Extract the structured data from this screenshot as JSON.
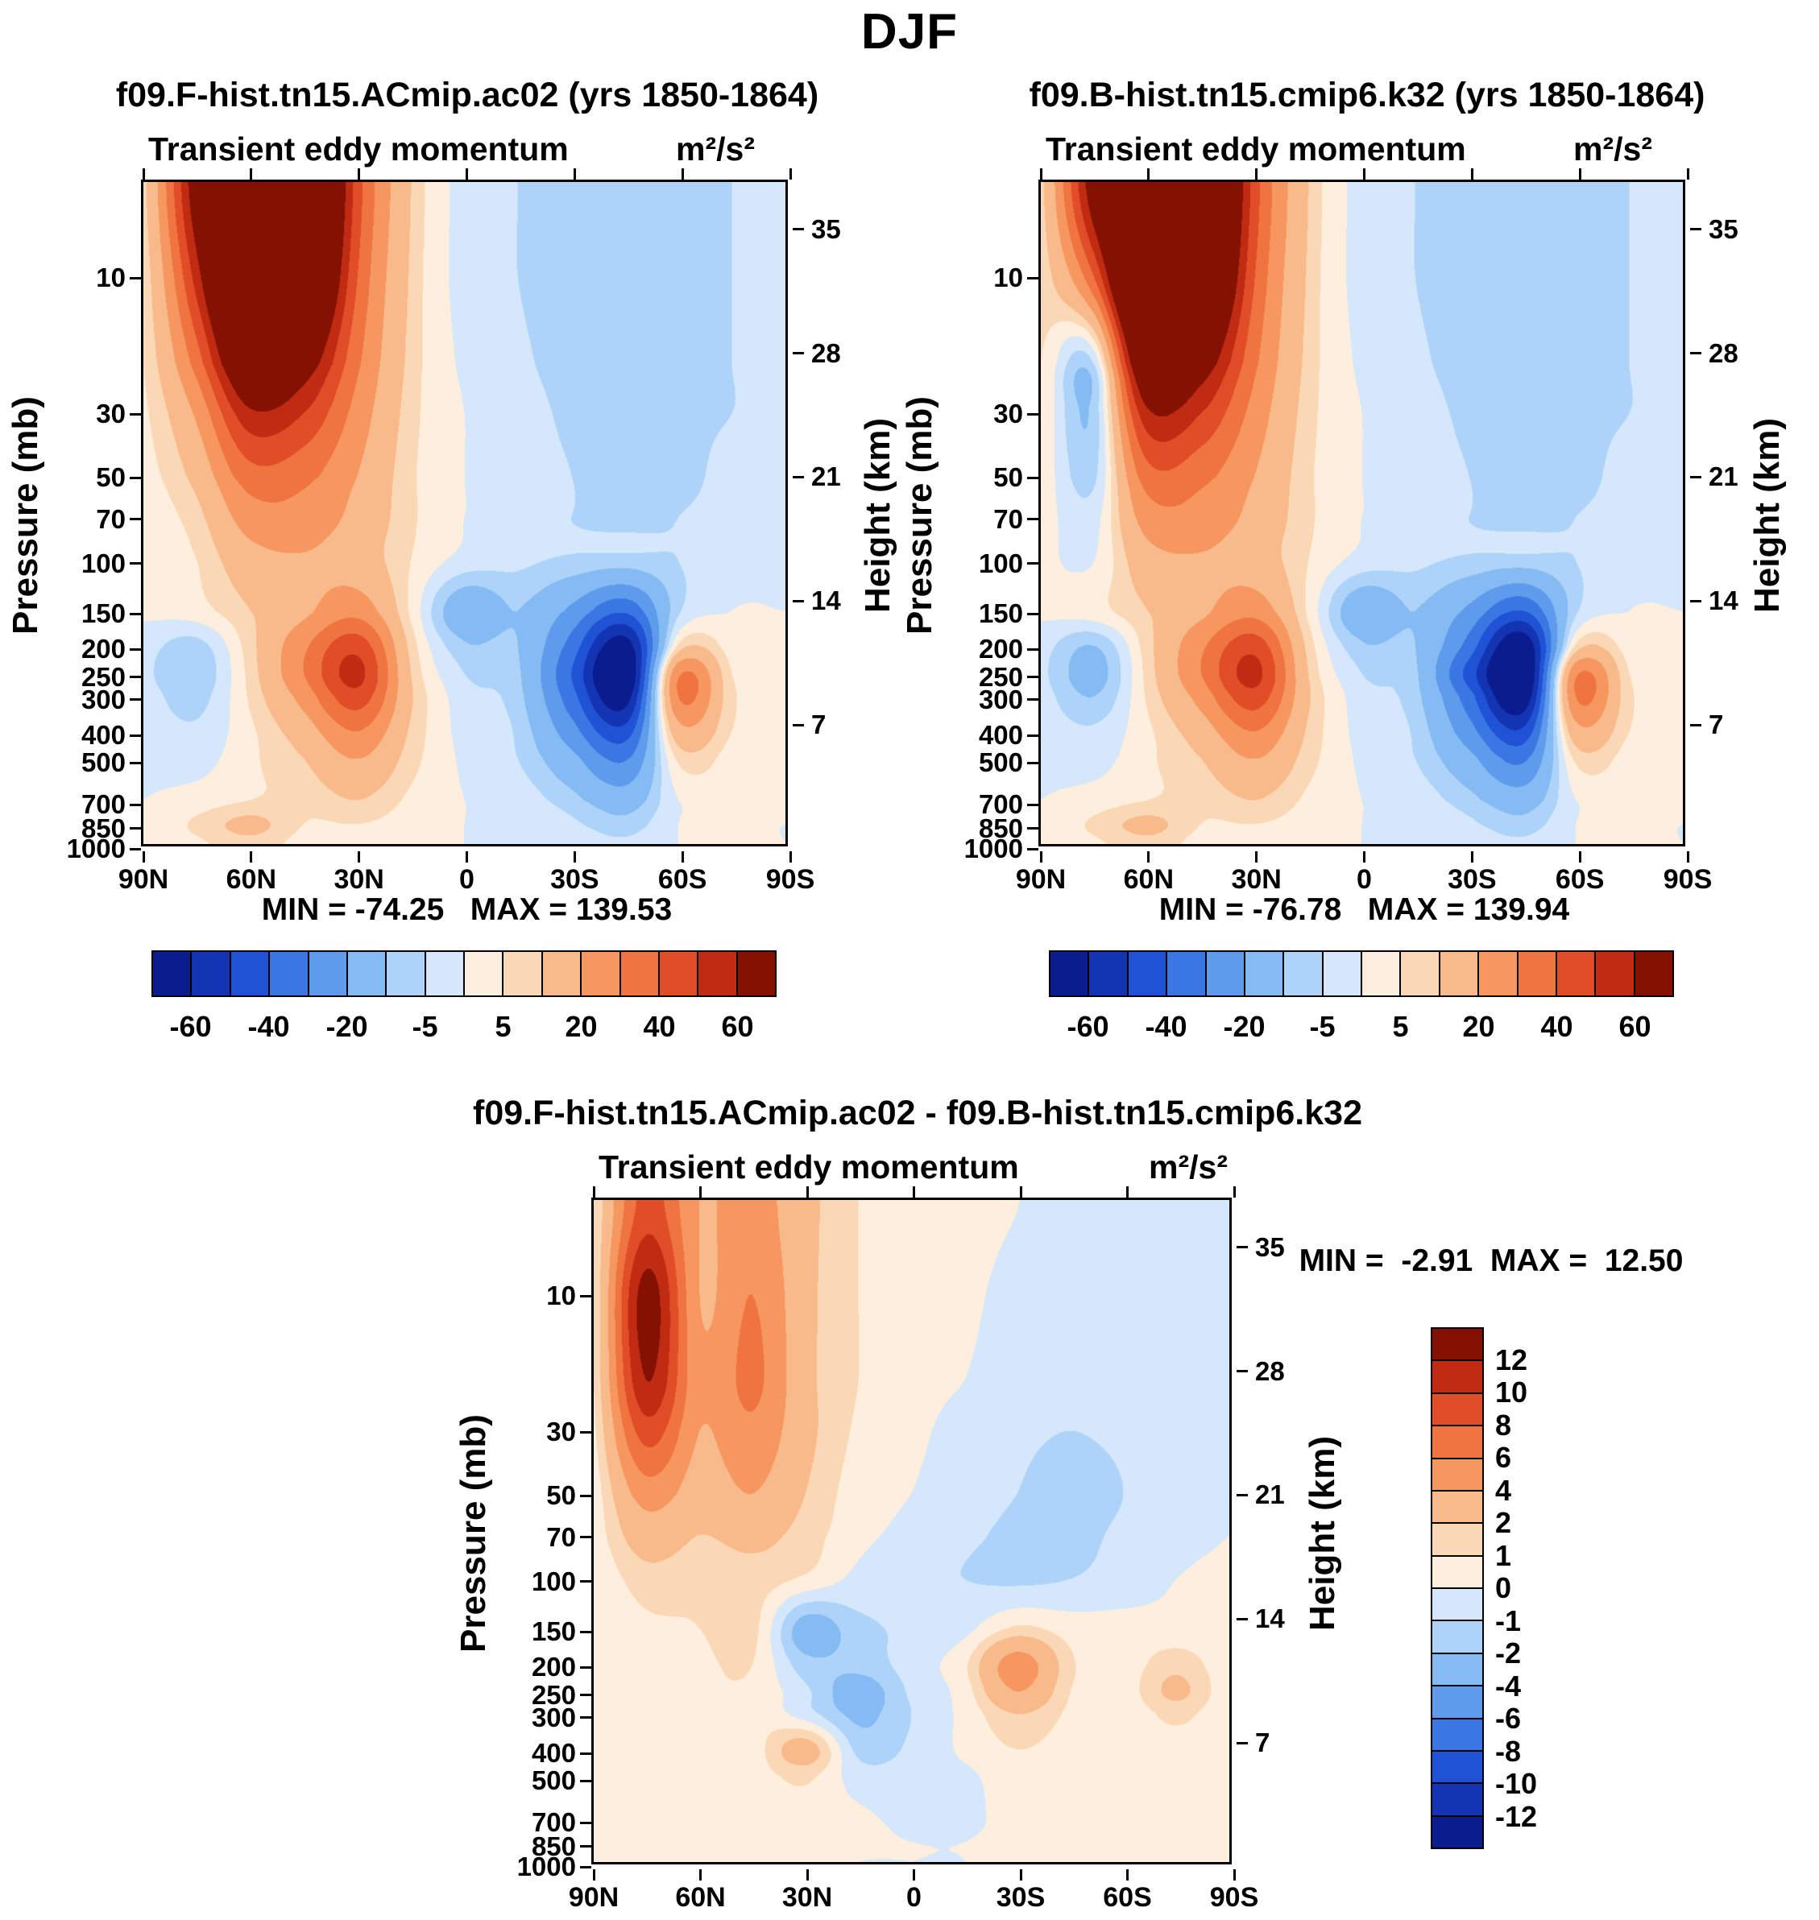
{
  "figure_title": "DJF",
  "axis": {
    "pressure_label": "Pressure (mb)",
    "height_label": "Height (km)",
    "pressure_ticks": [
      10,
      30,
      50,
      70,
      100,
      150,
      200,
      250,
      300,
      400,
      500,
      700,
      850,
      1000
    ],
    "height_ticks_km": [
      35,
      28,
      21,
      14,
      7
    ],
    "lat_tick_labels": [
      "90N",
      "60N",
      "30N",
      "0",
      "30S",
      "60S",
      "90S"
    ],
    "lat_tick_values": [
      90,
      60,
      30,
      0,
      -30,
      -60,
      -90
    ],
    "pressure_top_mb": 4.6,
    "pressure_bottom_mb": 1000,
    "scale_height_km": 7
  },
  "palette": [
    "#0b1c8f",
    "#1334b3",
    "#1f52d4",
    "#3b77e3",
    "#5e9bed",
    "#85bbf3",
    "#aed3f8",
    "#d4e7fb",
    "#fdeedd",
    "#fbd8b5",
    "#f9ba8b",
    "#f5975f",
    "#ef7440",
    "#e04d26",
    "#c02c11",
    "#841102"
  ],
  "panels": [
    {
      "title": "f09.F-hist.tn15.ACmip.ac02 (yrs 1850-1864)",
      "stats": "MIN = -74.25   MAX = 139.53"
    },
    {
      "title": "f09.B-hist.tn15.cmip6.k32 (yrs 1850-1864)",
      "stats": "MIN = -76.78   MAX = 139.94"
    },
    {
      "title": "f09.F-hist.tn15.ACmip.ac02 - f09.B-hist.tn15.cmip6.k32",
      "stats": "MIN =  -2.91  MAX =  12.50"
    }
  ],
  "colorbars": {
    "top": {
      "levels": [
        -60,
        -50,
        -40,
        -30,
        -20,
        -10,
        -5,
        0,
        5,
        10,
        20,
        30,
        40,
        50,
        60
      ],
      "labels": [
        "-60",
        "-40",
        "-20",
        "-5",
        "5",
        "20",
        "40",
        "60"
      ]
    },
    "diff": {
      "levels": [
        -12,
        -10,
        -8,
        -6,
        -4,
        -2,
        -1,
        0,
        1,
        2,
        4,
        6,
        8,
        10,
        12
      ],
      "labels_top_to_bottom": [
        "12",
        "10",
        "8",
        "6",
        "4",
        "2",
        "1",
        "0",
        "-1",
        "-2",
        "-4",
        "-6",
        "-8",
        "-10",
        "-12"
      ]
    }
  },
  "chart_data": [
    {
      "type": "contour",
      "title": "f09.F-hist.tn15.ACmip.ac02 (yrs 1850-1864)",
      "inner_title": "Transient eddy momentum",
      "units": "m²/s²",
      "min": -74.25,
      "max": 139.53,
      "x_lats": [
        90,
        75,
        60,
        45,
        30,
        15,
        0,
        -15,
        -30,
        -45,
        -60,
        -75,
        -90
      ],
      "y_pressure_mb": [
        5,
        10,
        20,
        30,
        50,
        70,
        100,
        150,
        200,
        250,
        300,
        400,
        500,
        700,
        850,
        1000
      ],
      "levels": [
        -60,
        -50,
        -40,
        -30,
        -20,
        -10,
        -5,
        0,
        5,
        10,
        20,
        30,
        40,
        50,
        60
      ],
      "values": [
        [
          8,
          70,
          135,
          120,
          45,
          10,
          -2,
          -5,
          -8,
          -9,
          -7,
          -5,
          -4
        ],
        [
          6,
          55,
          125,
          105,
          40,
          9,
          -2,
          -5,
          -8,
          -9,
          -7,
          -5,
          -4
        ],
        [
          5,
          35,
          85,
          70,
          32,
          8,
          -1,
          -4,
          -7,
          -8,
          -7,
          -5,
          -4
        ],
        [
          4,
          22,
          58,
          50,
          26,
          7,
          0,
          -3,
          -6,
          -8,
          -6,
          -5,
          -4
        ],
        [
          3,
          13,
          36,
          33,
          20,
          6,
          0,
          -3,
          -5,
          -7,
          -6,
          -4,
          -3
        ],
        [
          2,
          8,
          25,
          26,
          17,
          6,
          0,
          -3,
          -5,
          -6,
          -5,
          -4,
          -3
        ],
        [
          1,
          5,
          16,
          19,
          15,
          5,
          -2,
          -4,
          -6,
          -7,
          -5,
          -3,
          -2
        ],
        [
          1,
          3,
          10,
          18,
          26,
          4,
          -16,
          -10,
          -22,
          -38,
          -6,
          0,
          0
        ],
        [
          -3,
          -7,
          8,
          28,
          46,
          8,
          -9,
          -10,
          -34,
          -66,
          6,
          3,
          2
        ],
        [
          -4,
          -9,
          7,
          30,
          53,
          10,
          -5,
          -9,
          -40,
          -74,
          28,
          5,
          3
        ],
        [
          -3,
          -7,
          6,
          24,
          46,
          11,
          -3,
          -8,
          -36,
          -66,
          30,
          6,
          4
        ],
        [
          -2,
          -4,
          4,
          15,
          30,
          9,
          -2,
          -6,
          -26,
          -46,
          16,
          5,
          3
        ],
        [
          -1,
          -2,
          4,
          10,
          20,
          7,
          -1,
          -5,
          -17,
          -31,
          6,
          3,
          2
        ],
        [
          0,
          2,
          5,
          6,
          10,
          4,
          0,
          -2,
          -8,
          -15,
          0,
          2,
          1
        ],
        [
          1,
          6,
          12,
          5,
          5,
          3,
          0,
          -1,
          -4,
          -8,
          0,
          1,
          0
        ],
        [
          1,
          4,
          8,
          3,
          3,
          2,
          0,
          -1,
          -2,
          -4,
          0,
          1,
          0
        ]
      ]
    },
    {
      "type": "contour",
      "title": "f09.B-hist.tn15.cmip6.k32 (yrs 1850-1864)",
      "inner_title": "Transient eddy momentum",
      "units": "m²/s²",
      "min": -76.78,
      "max": 139.94,
      "x_lats": [
        90,
        75,
        60,
        45,
        30,
        15,
        0,
        -15,
        -30,
        -45,
        -60,
        -75,
        -90
      ],
      "y_pressure_mb": [
        5,
        10,
        20,
        30,
        50,
        70,
        100,
        150,
        200,
        250,
        300,
        400,
        500,
        700,
        850,
        1000
      ],
      "levels": [
        -60,
        -50,
        -40,
        -30,
        -20,
        -10,
        -5,
        0,
        5,
        10,
        20,
        30,
        40,
        50,
        60
      ],
      "values": [
        [
          8,
          70,
          135,
          120,
          45,
          10,
          -2,
          -5,
          -8,
          -9,
          -7,
          -5,
          -4
        ],
        [
          6,
          40,
          125,
          105,
          40,
          9,
          -2,
          -5,
          -8,
          -9,
          -7,
          -5,
          -4
        ],
        [
          5,
          -4,
          85,
          70,
          32,
          8,
          -1,
          -4,
          -7,
          -8,
          -7,
          -5,
          -4
        ],
        [
          4,
          -8,
          58,
          50,
          26,
          7,
          0,
          -3,
          -6,
          -8,
          -6,
          -5,
          -4
        ],
        [
          3,
          -6,
          36,
          33,
          20,
          6,
          0,
          -3,
          -5,
          -7,
          -6,
          -4,
          -3
        ],
        [
          2,
          -2,
          25,
          26,
          17,
          6,
          0,
          -3,
          -5,
          -6,
          -5,
          -4,
          -3
        ],
        [
          1,
          0,
          16,
          19,
          15,
          5,
          -2,
          -4,
          -6,
          -7,
          -5,
          -3,
          -2
        ],
        [
          1,
          3,
          10,
          18,
          26,
          4,
          -16,
          -10,
          -22,
          -40,
          -6,
          0,
          0
        ],
        [
          -3,
          -10,
          8,
          28,
          46,
          8,
          -9,
          -10,
          -34,
          -70,
          6,
          3,
          2
        ],
        [
          -4,
          -13,
          7,
          30,
          53,
          10,
          -5,
          -9,
          -44,
          -77,
          28,
          5,
          3
        ],
        [
          -3,
          -10,
          6,
          24,
          46,
          11,
          -3,
          -8,
          -36,
          -70,
          30,
          6,
          4
        ],
        [
          -2,
          -4,
          4,
          15,
          30,
          9,
          -2,
          -6,
          -26,
          -48,
          16,
          5,
          3
        ],
        [
          -1,
          -2,
          4,
          10,
          20,
          7,
          -1,
          -5,
          -17,
          -32,
          6,
          3,
          2
        ],
        [
          0,
          2,
          5,
          6,
          10,
          4,
          0,
          -2,
          -8,
          -15,
          0,
          2,
          1
        ],
        [
          1,
          6,
          12,
          5,
          5,
          3,
          0,
          -1,
          -4,
          -8,
          0,
          1,
          0
        ],
        [
          1,
          4,
          8,
          3,
          3,
          2,
          0,
          -1,
          -2,
          -4,
          0,
          1,
          0
        ]
      ]
    },
    {
      "type": "contour",
      "title": "f09.F-hist.tn15.ACmip.ac02 - f09.B-hist.tn15.cmip6.k32",
      "inner_title": "Transient eddy momentum",
      "units": "m²/s²",
      "min": -2.91,
      "max": 12.5,
      "x_lats": [
        90,
        75,
        60,
        45,
        30,
        15,
        0,
        -15,
        -30,
        -45,
        -60,
        -75,
        -90
      ],
      "y_pressure_mb": [
        5,
        10,
        20,
        30,
        50,
        70,
        100,
        150,
        200,
        250,
        300,
        400,
        500,
        700,
        850,
        1000
      ],
      "levels": [
        -12,
        -10,
        -8,
        -6,
        -4,
        -2,
        -1,
        0,
        1,
        2,
        4,
        6,
        8,
        10,
        12
      ],
      "values": [
        [
          1,
          9,
          4,
          5,
          2.5,
          1,
          0.5,
          0.3,
          0,
          -0.3,
          -0.3,
          -0.2,
          0
        ],
        [
          1,
          13,
          4,
          6,
          2.5,
          1,
          0.5,
          0.2,
          -0.3,
          -0.5,
          -0.5,
          -0.2,
          0
        ],
        [
          1,
          12,
          4.5,
          6.5,
          2.5,
          1,
          0.3,
          0,
          -0.5,
          -0.8,
          -0.5,
          -0.2,
          0
        ],
        [
          0.8,
          9,
          4,
          5.5,
          2.5,
          0.8,
          0.2,
          -0.3,
          -0.8,
          -1,
          -0.8,
          -0.3,
          0
        ],
        [
          0.5,
          5,
          3,
          4,
          2,
          0.5,
          0,
          -0.5,
          -1,
          -1.3,
          -1,
          -0.3,
          0
        ],
        [
          0.5,
          3,
          2,
          2.5,
          1.5,
          0.3,
          -0.3,
          -0.8,
          -1.2,
          -1.3,
          -0.8,
          -0.3,
          0
        ],
        [
          0.3,
          1.5,
          1.2,
          1.5,
          0.8,
          -0.3,
          -0.8,
          -1,
          -1.2,
          -1,
          -0.5,
          0,
          0.2
        ],
        [
          0.3,
          0.8,
          1,
          1.3,
          -2.7,
          -1.3,
          -0.8,
          -0.3,
          1.2,
          0.5,
          0.3,
          0.3,
          0.2
        ],
        [
          0.3,
          0.5,
          0.8,
          1,
          -1.6,
          -1.6,
          -0.5,
          0.8,
          5,
          1.2,
          0.5,
          1.6,
          0.3
        ],
        [
          0.2,
          0.5,
          0.8,
          0.8,
          -0.8,
          -2.7,
          -0.8,
          0.5,
          4,
          1,
          0.5,
          2.3,
          0.3
        ],
        [
          0.2,
          0.3,
          0.5,
          0.8,
          -0.5,
          -2.3,
          -1,
          0.3,
          2,
          0.8,
          0.3,
          1.3,
          0.2
        ],
        [
          0.2,
          0.3,
          0.5,
          0.5,
          2.7,
          -1.3,
          -0.8,
          0.2,
          1,
          0.5,
          0.3,
          0.5,
          0.2
        ],
        [
          0.2,
          0.3,
          0.3,
          0.5,
          1.2,
          -0.5,
          -0.5,
          -0.2,
          0.5,
          0.3,
          0.5,
          0.3,
          0.2
        ],
        [
          0.2,
          0.5,
          0.3,
          0.3,
          0.5,
          0.2,
          -0.3,
          -0.2,
          0.3,
          0.3,
          0.3,
          0.2,
          0.2
        ],
        [
          0.2,
          0.5,
          0.5,
          0.3,
          0.3,
          0.2,
          0,
          0,
          0.2,
          0.2,
          0.3,
          0.2,
          0.2
        ],
        [
          0.2,
          0.3,
          0.3,
          0.2,
          0.2,
          0,
          0,
          0,
          0.2,
          0.2,
          0.2,
          0.2,
          0.2
        ]
      ]
    }
  ]
}
